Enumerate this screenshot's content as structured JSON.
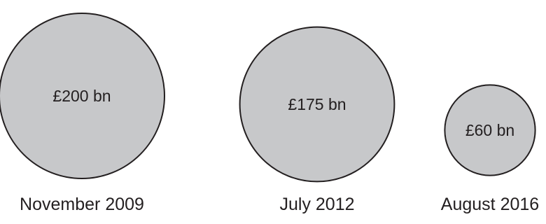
{
  "colors": {
    "bubble_fill": "#c7c8ca",
    "bubble_stroke": "#231f20",
    "text": "#231f20",
    "background": "#ffffff"
  },
  "chart_data": {
    "type": "bubble",
    "title": "",
    "categories": [
      "November 2009",
      "July 2012",
      "August 2016"
    ],
    "values": [
      200,
      175,
      60
    ],
    "value_labels": [
      "£200 bn",
      "£175 bn",
      "£60 bn"
    ],
    "unit": "£ bn",
    "legend": "none",
    "grid": false
  }
}
